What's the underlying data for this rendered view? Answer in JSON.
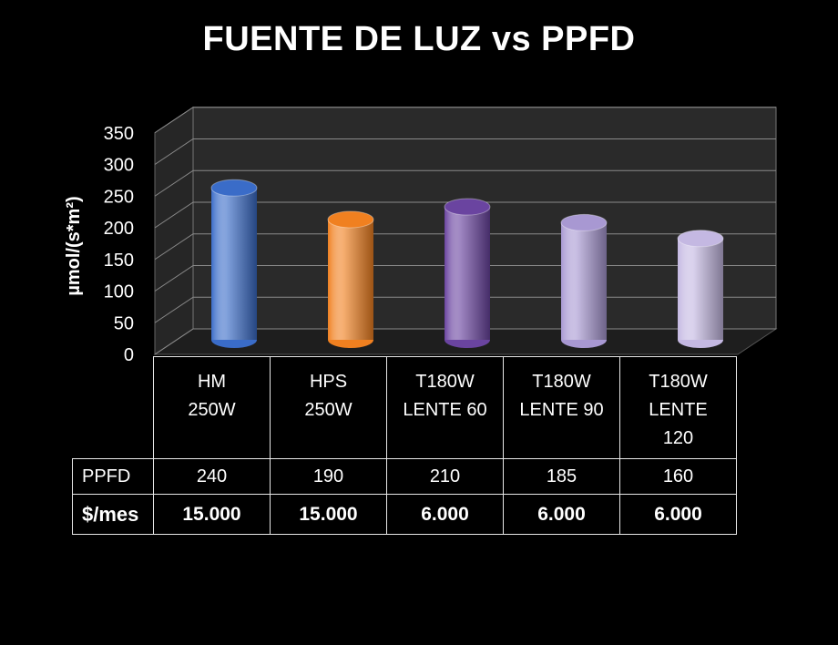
{
  "chart_data": {
    "type": "bar",
    "title": "FUENTE DE LUZ vs PPFD",
    "ylabel": "µmol/(s*m²)",
    "ylim": [
      0,
      350
    ],
    "yticks": [
      0,
      50,
      100,
      150,
      200,
      250,
      300,
      350
    ],
    "grid": true,
    "categories": [
      "HM 250W",
      "HPS 250W",
      "T180W LENTE 60",
      "T180W LENTE 90",
      "T180W LENTE 120"
    ],
    "category_lines": [
      [
        "HM",
        "250W"
      ],
      [
        "HPS",
        "250W"
      ],
      [
        "T180W",
        "LENTE 60"
      ],
      [
        "T180W",
        "LENTE 90"
      ],
      [
        "T180W",
        "LENTE",
        "120"
      ]
    ],
    "series": [
      {
        "name": "PPFD",
        "values": [
          240,
          190,
          210,
          185,
          160
        ]
      }
    ],
    "bar_colors": [
      "#3a6cc8",
      "#f08020",
      "#6a44a0",
      "#a898d2",
      "#c4b8e2"
    ],
    "table": {
      "rows": [
        {
          "label": "PPFD",
          "values": [
            "240",
            "190",
            "210",
            "185",
            "160"
          ]
        },
        {
          "label": "$/mes",
          "values": [
            "15.000",
            "15.000",
            "6.000",
            "6.000",
            "6.000"
          ]
        }
      ]
    }
  }
}
